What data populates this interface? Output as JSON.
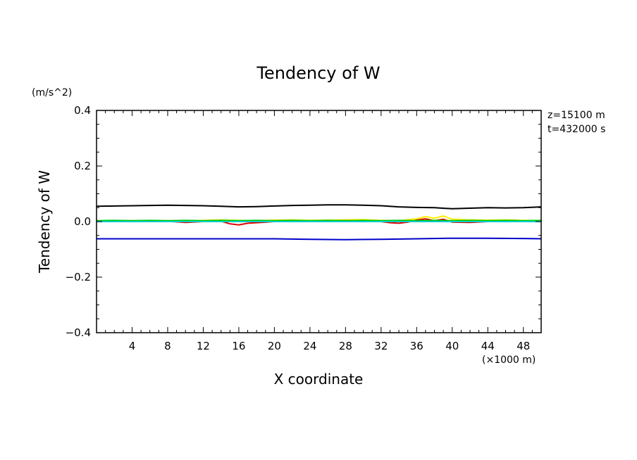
{
  "title": "Tendency of W",
  "y_unit": "(m/s^2)",
  "x_unit": "(×1000 m)",
  "info": {
    "z": "z=15100 m",
    "t": "t=432000 s"
  },
  "chart_data": {
    "type": "line",
    "title": "Tendency of W",
    "xlabel": "X coordinate",
    "ylabel": "Tendency of W",
    "xlim": [
      0,
      50
    ],
    "ylim": [
      -0.4,
      0.4
    ],
    "x_ticks": [
      4,
      8,
      12,
      16,
      20,
      24,
      28,
      32,
      36,
      40,
      44,
      48
    ],
    "y_ticks": [
      {
        "value": 0.4,
        "label": "0.4"
      },
      {
        "value": 0.2,
        "label": "0.2"
      },
      {
        "value": 0.0,
        "label": "0.0"
      },
      {
        "value": -0.2,
        "label": "−0.2"
      },
      {
        "value": -0.4,
        "label": "−0.4"
      }
    ],
    "grid": false,
    "series": [
      {
        "color": "#000000",
        "x": [
          0,
          2,
          4,
          6,
          8,
          10,
          12,
          14,
          16,
          18,
          20,
          22,
          24,
          26,
          28,
          30,
          32,
          34,
          36,
          38,
          40,
          42,
          44,
          46,
          48,
          50
        ],
        "y": [
          0.055,
          0.056,
          0.057,
          0.058,
          0.059,
          0.058,
          0.057,
          0.055,
          0.053,
          0.054,
          0.056,
          0.058,
          0.059,
          0.06,
          0.06,
          0.059,
          0.057,
          0.053,
          0.051,
          0.05,
          0.046,
          0.048,
          0.05,
          0.049,
          0.05,
          0.053
        ]
      },
      {
        "color": "#0000cc",
        "x": [
          0,
          4,
          8,
          12,
          16,
          20,
          24,
          28,
          32,
          36,
          40,
          44,
          48,
          50
        ],
        "y": [
          -0.062,
          -0.062,
          -0.062,
          -0.062,
          -0.062,
          -0.062,
          -0.064,
          -0.065,
          -0.064,
          -0.062,
          -0.06,
          -0.06,
          -0.061,
          -0.062
        ]
      },
      {
        "color": "#ffee00",
        "x": [
          0,
          2,
          4,
          6,
          8,
          10,
          12,
          14,
          16,
          18,
          20,
          22,
          24,
          26,
          28,
          30,
          32,
          34,
          36,
          37,
          38,
          39,
          40,
          42,
          44,
          46,
          48,
          50
        ],
        "y": [
          0.002,
          0.002,
          0.003,
          0.002,
          0.003,
          0.002,
          0.004,
          0.006,
          0.004,
          0.003,
          0.005,
          0.006,
          0.004,
          0.005,
          0.006,
          0.007,
          0.004,
          0.003,
          0.01,
          0.018,
          0.012,
          0.02,
          0.008,
          0.006,
          0.005,
          0.006,
          0.004,
          0.003
        ]
      },
      {
        "color": "#dd0000",
        "x": [
          0,
          2,
          4,
          6,
          8,
          10,
          12,
          14,
          15,
          16,
          17,
          18,
          20,
          22,
          24,
          26,
          28,
          30,
          32,
          33,
          34,
          35,
          36,
          37,
          38,
          39,
          40,
          42,
          44,
          46,
          47,
          48,
          50
        ],
        "y": [
          0.001,
          0.0,
          0.001,
          0.0,
          0.001,
          -0.003,
          0.0,
          0.001,
          -0.008,
          -0.012,
          -0.006,
          -0.004,
          0.0,
          0.002,
          0.001,
          0.002,
          0.003,
          0.002,
          0.0,
          -0.004,
          -0.006,
          -0.002,
          0.005,
          0.01,
          0.003,
          0.008,
          -0.002,
          -0.003,
          0.0,
          0.001,
          0.004,
          0.0,
          0.001
        ]
      },
      {
        "color": "#00cc00",
        "x": [
          0,
          2,
          4,
          6,
          8,
          10,
          12,
          14,
          16,
          18,
          20,
          22,
          24,
          26,
          28,
          30,
          32,
          34,
          36,
          38,
          40,
          42,
          44,
          46,
          48,
          50
        ],
        "y": [
          0.003,
          0.004,
          0.003,
          0.004,
          0.003,
          0.004,
          0.003,
          0.004,
          0.003,
          0.004,
          0.003,
          0.004,
          0.003,
          0.004,
          0.003,
          0.004,
          0.003,
          0.004,
          0.003,
          0.004,
          0.003,
          0.004,
          0.003,
          0.004,
          0.003,
          0.004
        ]
      },
      {
        "color": "#00cccc",
        "x": [
          0,
          5,
          10,
          15,
          20,
          25,
          30,
          35,
          40,
          45,
          50
        ],
        "y": [
          0.0,
          0.0,
          0.0,
          0.0,
          0.0,
          0.0,
          0.0,
          0.0,
          0.0,
          0.0,
          0.0
        ]
      }
    ]
  }
}
